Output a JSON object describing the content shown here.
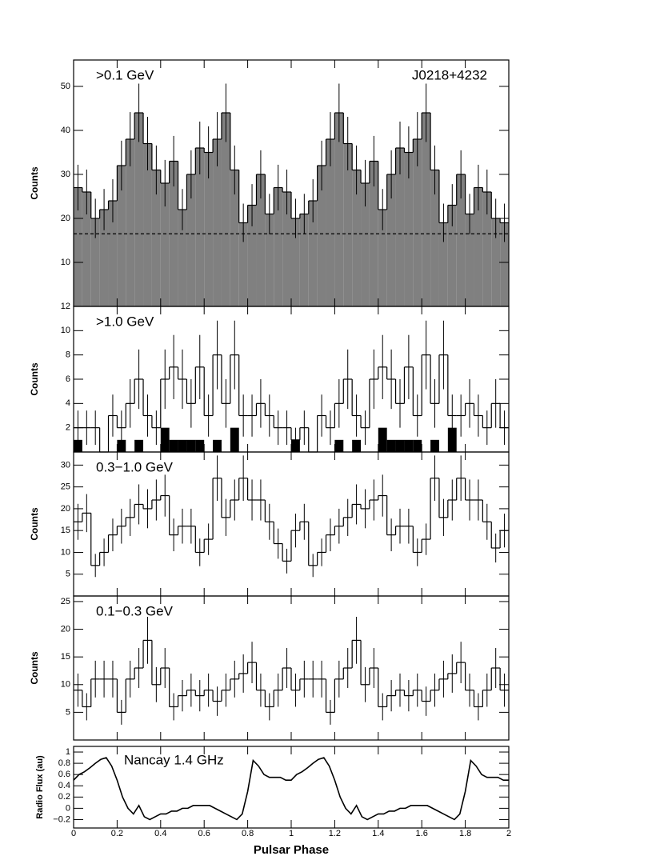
{
  "chart_data": [
    {
      "type": "histogram",
      "annotations": [
        ">0.1 GeV",
        "J0218+4232"
      ],
      "ylabel": "Counts",
      "bins": [
        0,
        0.04,
        0.08,
        0.12,
        0.16,
        0.2,
        0.24,
        0.28,
        0.32,
        0.36,
        0.4,
        0.44,
        0.48,
        0.52,
        0.56,
        0.6,
        0.64,
        0.68,
        0.72,
        0.76,
        0.8,
        0.84,
        0.88,
        0.92,
        0.96,
        1,
        1.04,
        1.08,
        1.12,
        1.16,
        1.2,
        1.24,
        1.28,
        1.32,
        1.36,
        1.4,
        1.44,
        1.48,
        1.52,
        1.56,
        1.6,
        1.64,
        1.68,
        1.72,
        1.76,
        1.8,
        1.84,
        1.88,
        1.92,
        1.96,
        2
      ],
      "series": [
        {
          "color": "#000000",
          "fill": "#808080",
          "errorbars": true,
          "values": [
            27,
            26,
            20,
            22,
            24,
            32,
            38,
            44,
            37,
            31,
            28,
            33,
            22,
            30,
            36,
            35,
            38,
            44,
            31,
            19,
            23,
            30,
            21,
            27,
            26,
            20,
            21,
            24,
            32,
            38,
            44,
            37,
            31,
            28,
            33,
            22,
            30,
            36,
            35,
            38,
            44,
            31,
            19,
            23,
            30,
            21,
            27,
            26,
            20,
            19
          ]
        }
      ],
      "background": 16.5,
      "xlim": [
        0,
        2
      ],
      "ylim": [
        0,
        56
      ],
      "yticks": [
        10,
        20,
        30,
        40,
        50
      ]
    },
    {
      "type": "histogram",
      "annotations": [
        ">1.0 GeV"
      ],
      "ylabel": "Counts",
      "bins": [
        0,
        0.04,
        0.08,
        0.12,
        0.16,
        0.2,
        0.24,
        0.28,
        0.32,
        0.36,
        0.4,
        0.44,
        0.48,
        0.52,
        0.56,
        0.6,
        0.64,
        0.68,
        0.72,
        0.76,
        0.8,
        0.84,
        0.88,
        0.92,
        0.96,
        1,
        1.04,
        1.08,
        1.12,
        1.16,
        1.2,
        1.24,
        1.28,
        1.32,
        1.36,
        1.4,
        1.44,
        1.48,
        1.52,
        1.56,
        1.6,
        1.64,
        1.68,
        1.72,
        1.76,
        1.8,
        1.84,
        1.88,
        1.92,
        1.96,
        2
      ],
      "series": [
        {
          "color": "#000000",
          "errorbars": true,
          "values": [
            2,
            2,
            2,
            0,
            3,
            2,
            4,
            6,
            3,
            2,
            6,
            7,
            6,
            4,
            7,
            3,
            8,
            4,
            8,
            3,
            3,
            4,
            3,
            2,
            2,
            1,
            2,
            0,
            3,
            2,
            4,
            6,
            3,
            2,
            6,
            7,
            6,
            4,
            7,
            3,
            8,
            4,
            8,
            3,
            3,
            4,
            3,
            2,
            4,
            2
          ]
        },
        {
          "color": "#000000",
          "fill": "#000000",
          "errorbars": false,
          "values": [
            1,
            0,
            0,
            0,
            0,
            1,
            0,
            1,
            0,
            0,
            2,
            1,
            1,
            1,
            1,
            0,
            1,
            0,
            2,
            0,
            0,
            0,
            0,
            0,
            0,
            1,
            0,
            0,
            0,
            0,
            1,
            0,
            1,
            0,
            0,
            2,
            1,
            1,
            1,
            1,
            0,
            1,
            0,
            2,
            0,
            0,
            0,
            0,
            0,
            0
          ]
        }
      ],
      "xlim": [
        0,
        2
      ],
      "ylim": [
        0,
        12
      ],
      "yticks": [
        2,
        4,
        6,
        8,
        10,
        12
      ]
    },
    {
      "type": "histogram",
      "annotations": [
        "0.3−1.0 GeV"
      ],
      "ylabel": "Counts",
      "bins": [
        0,
        0.04,
        0.08,
        0.12,
        0.16,
        0.2,
        0.24,
        0.28,
        0.32,
        0.36,
        0.4,
        0.44,
        0.48,
        0.52,
        0.56,
        0.6,
        0.64,
        0.68,
        0.72,
        0.76,
        0.8,
        0.84,
        0.88,
        0.92,
        0.96,
        1,
        1.04,
        1.08,
        1.12,
        1.16,
        1.2,
        1.24,
        1.28,
        1.32,
        1.36,
        1.4,
        1.44,
        1.48,
        1.52,
        1.56,
        1.6,
        1.64,
        1.68,
        1.72,
        1.76,
        1.8,
        1.84,
        1.88,
        1.92,
        1.96,
        2
      ],
      "series": [
        {
          "color": "#000000",
          "errorbars": true,
          "values": [
            17,
            19,
            7,
            10,
            14,
            16,
            18,
            21,
            20,
            22,
            23,
            14,
            16,
            16,
            10,
            13,
            27,
            18,
            22,
            27,
            22,
            22,
            17,
            12,
            8,
            15,
            17,
            7,
            10,
            14,
            16,
            18,
            21,
            20,
            22,
            23,
            14,
            16,
            16,
            10,
            13,
            27,
            18,
            22,
            27,
            22,
            22,
            17,
            11,
            15
          ]
        }
      ],
      "xlim": [
        0,
        2
      ],
      "ylim": [
        0,
        33
      ],
      "yticks": [
        5,
        10,
        15,
        20,
        25,
        30
      ]
    },
    {
      "type": "histogram",
      "annotations": [
        "0.1−0.3 GeV"
      ],
      "ylabel": "Counts",
      "xlabel": "Pulsar Phase",
      "bins": [
        0,
        0.04,
        0.08,
        0.12,
        0.16,
        0.2,
        0.24,
        0.28,
        0.32,
        0.36,
        0.4,
        0.44,
        0.48,
        0.52,
        0.56,
        0.6,
        0.64,
        0.68,
        0.72,
        0.76,
        0.8,
        0.84,
        0.88,
        0.92,
        0.96,
        1,
        1.04,
        1.08,
        1.12,
        1.16,
        1.2,
        1.24,
        1.28,
        1.32,
        1.36,
        1.4,
        1.44,
        1.48,
        1.52,
        1.56,
        1.6,
        1.64,
        1.68,
        1.72,
        1.76,
        1.8,
        1.84,
        1.88,
        1.92,
        1.96,
        2
      ],
      "series": [
        {
          "color": "#000000",
          "errorbars": true,
          "values": [
            9,
            6,
            11,
            11,
            11,
            5,
            11,
            13,
            18,
            10,
            13,
            6,
            8,
            9,
            8,
            9,
            7,
            9,
            11,
            12,
            14,
            9,
            6,
            9,
            13,
            9,
            11,
            11,
            11,
            5,
            11,
            13,
            18,
            10,
            13,
            6,
            8,
            9,
            8,
            9,
            7,
            9,
            11,
            12,
            14,
            9,
            6,
            9,
            13,
            9
          ]
        }
      ],
      "xlim": [
        0,
        2
      ],
      "ylim": [
        0,
        26
      ],
      "yticks": [
        5,
        10,
        15,
        20,
        25
      ]
    },
    {
      "type": "line",
      "annotations": [
        "Nancay 1.4 GHz"
      ],
      "ylabel": "Radio Flux (au)",
      "xlabel": "Pulsar Phase",
      "color": "#000000",
      "x": [
        0,
        0.025,
        0.05,
        0.075,
        0.1,
        0.125,
        0.15,
        0.175,
        0.2,
        0.225,
        0.25,
        0.275,
        0.3,
        0.325,
        0.35,
        0.375,
        0.4,
        0.425,
        0.45,
        0.475,
        0.5,
        0.525,
        0.55,
        0.575,
        0.6,
        0.625,
        0.65,
        0.675,
        0.7,
        0.725,
        0.75,
        0.775,
        0.8,
        0.825,
        0.85,
        0.875,
        0.9,
        0.925,
        0.95,
        0.975,
        1,
        1.025,
        1.05,
        1.075,
        1.1,
        1.125,
        1.15,
        1.175,
        1.2,
        1.225,
        1.25,
        1.275,
        1.3,
        1.325,
        1.35,
        1.375,
        1.4,
        1.425,
        1.45,
        1.475,
        1.5,
        1.525,
        1.55,
        1.575,
        1.6,
        1.625,
        1.65,
        1.675,
        1.7,
        1.725,
        1.75,
        1.775,
        1.8,
        1.825,
        1.85,
        1.875,
        1.9,
        1.925,
        1.95,
        1.975,
        2
      ],
      "values": [
        0.5,
        0.6,
        0.65,
        0.72,
        0.8,
        0.87,
        0.9,
        0.75,
        0.5,
        0.2,
        0.0,
        -0.1,
        0.05,
        -0.15,
        -0.2,
        -0.15,
        -0.1,
        -0.1,
        -0.05,
        -0.05,
        0.0,
        0.0,
        0.05,
        0.05,
        0.05,
        0.05,
        0.0,
        -0.05,
        -0.1,
        -0.15,
        -0.2,
        -0.1,
        0.3,
        0.85,
        0.75,
        0.6,
        0.55,
        0.55,
        0.55,
        0.5,
        0.5,
        0.6,
        0.65,
        0.72,
        0.8,
        0.87,
        0.9,
        0.75,
        0.5,
        0.2,
        0.0,
        -0.1,
        0.05,
        -0.15,
        -0.2,
        -0.15,
        -0.1,
        -0.1,
        -0.05,
        -0.05,
        0.0,
        0.0,
        0.05,
        0.05,
        0.05,
        0.05,
        0.0,
        -0.05,
        -0.1,
        -0.15,
        -0.2,
        -0.1,
        0.3,
        0.85,
        0.75,
        0.6,
        0.55,
        0.55,
        0.55,
        0.5,
        0.5
      ],
      "xlim": [
        0,
        2
      ],
      "xticks": [
        0,
        0.2,
        0.4,
        0.6,
        0.8,
        1,
        1.2,
        1.4,
        1.6,
        1.8,
        2
      ],
      "ylim": [
        -0.35,
        1.1
      ],
      "yticks": [
        {
          "value": -0.2,
          "label": "−0.2"
        },
        0,
        0.2,
        0.4,
        0.6,
        0.8,
        1
      ]
    }
  ]
}
